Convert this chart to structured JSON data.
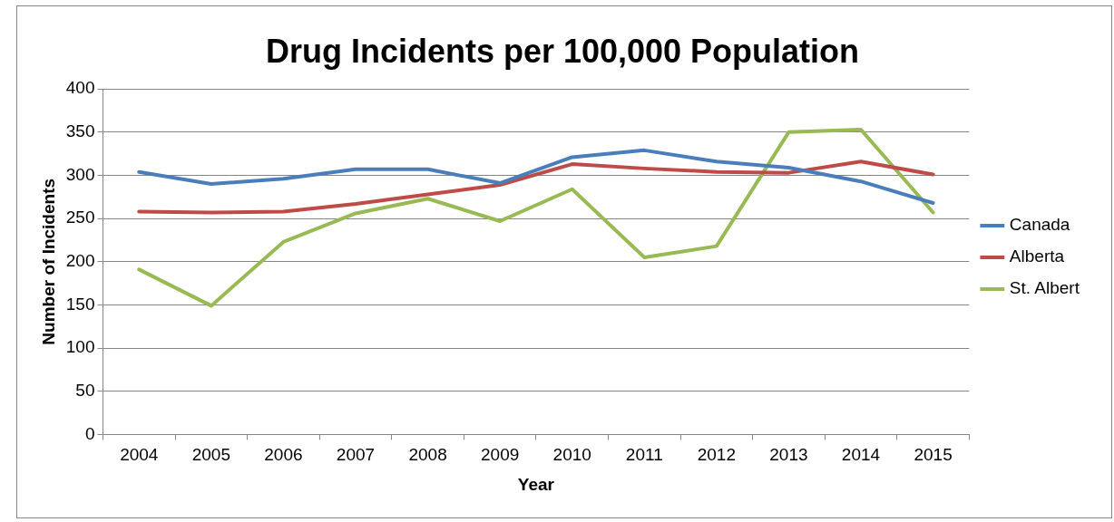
{
  "chart_data": {
    "type": "line",
    "title": "Drug Incidents per 100,000 Population",
    "xlabel": "Year",
    "ylabel": "Number of Incidents",
    "categories": [
      "2004",
      "2005",
      "2006",
      "2007",
      "2008",
      "2009",
      "2010",
      "2011",
      "2012",
      "2013",
      "2014",
      "2015"
    ],
    "series": [
      {
        "name": "Canada",
        "color": "#4a7ebb",
        "values": [
          304,
          290,
          296,
          307,
          307,
          291,
          321,
          329,
          316,
          309,
          293,
          268
        ]
      },
      {
        "name": "Alberta",
        "color": "#be4b48",
        "values": [
          258,
          257,
          258,
          267,
          278,
          289,
          313,
          308,
          304,
          303,
          316,
          301
        ]
      },
      {
        "name": "St. Albert",
        "color": "#98b954",
        "values": [
          191,
          149,
          223,
          256,
          273,
          247,
          284,
          205,
          218,
          350,
          353,
          257
        ]
      }
    ],
    "ylim": [
      0,
      400
    ],
    "yticks": [
      0,
      50,
      100,
      150,
      200,
      250,
      300,
      350,
      400
    ],
    "grid": "y",
    "legend": "right",
    "marker": "none",
    "line_style": "solid"
  }
}
